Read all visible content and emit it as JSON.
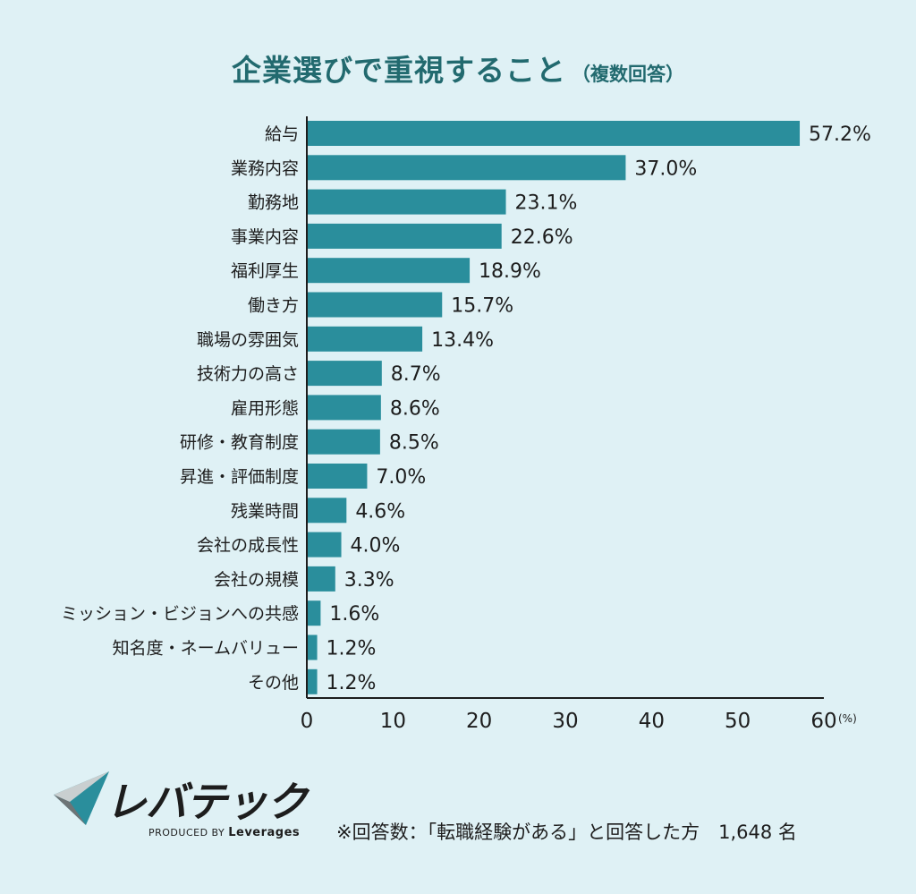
{
  "title": {
    "main": "企業選びで重視すること",
    "sub": "（複数回答）"
  },
  "chart_data": {
    "type": "bar",
    "orientation": "horizontal",
    "categories": [
      "給与",
      "業務内容",
      "勤務地",
      "事業内容",
      "福利厚生",
      "働き方",
      "職場の雰囲気",
      "技術力の高さ",
      "雇用形態",
      "研修・教育制度",
      "昇進・評価制度",
      "残業時間",
      "会社の成長性",
      "会社の規模",
      "ミッション・ビジョンへの共感",
      "知名度・ネームバリュー",
      "その他"
    ],
    "values": [
      57.2,
      37.0,
      23.1,
      22.6,
      18.9,
      15.7,
      13.4,
      8.7,
      8.6,
      8.5,
      7.0,
      4.6,
      4.0,
      3.3,
      1.6,
      1.2,
      1.2
    ],
    "value_labels": [
      "57.2%",
      "37.0%",
      "23.1%",
      "22.6%",
      "18.9%",
      "15.7%",
      "13.4%",
      "8.7%",
      "8.6%",
      "8.5%",
      "7.0%",
      "4.6%",
      "4.0%",
      "3.3%",
      "1.6%",
      "1.2%",
      "1.2%"
    ],
    "xlim": [
      0,
      60
    ],
    "xticks": [
      "0",
      "10",
      "20",
      "30",
      "40",
      "50",
      "60"
    ],
    "x_unit": "(%)",
    "bar_color": "#2a8e9c",
    "grid": false
  },
  "brand": {
    "name": "レバテック",
    "produced_by": "PRODUCED BY",
    "company": "Leverages"
  },
  "footnote": "※回答数：「転職経験がある」と回答した方　1,648 名",
  "colors": {
    "background": "#dff1f5",
    "title": "#226a6f",
    "bar": "#2a8e9c"
  }
}
